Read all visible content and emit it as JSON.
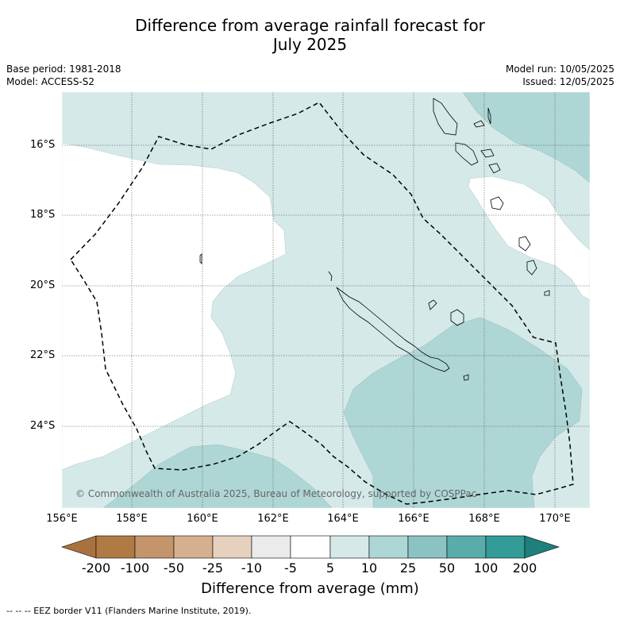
{
  "title_line1": "Difference from average rainfall forecast for",
  "title_line2": "July 2025",
  "base_period": "Base period: 1981-2018",
  "model": "Model: ACCESS-S2",
  "model_run": "Model run: 10/05/2025",
  "issued": "Issued: 12/05/2025",
  "copyright": "© Commonwealth of Australia 2025, Bureau of Meteorology, supported by COSPPac",
  "latitude_labels": [
    "16°S",
    "18°S",
    "20°S",
    "22°S",
    "24°S"
  ],
  "longitude_labels": [
    "156°E",
    "158°E",
    "160°E",
    "162°E",
    "164°E",
    "166°E",
    "168°E",
    "170°E"
  ],
  "colorbar": {
    "labels": [
      "-200",
      "-100",
      "-50",
      "-25",
      "-10",
      "-5",
      "5",
      "10",
      "25",
      "50",
      "100",
      "200"
    ],
    "colors": [
      "#a8723f",
      "#b07a44",
      "#c4956a",
      "#d4b08e",
      "#e6d1bf",
      "#ebebeb",
      "#ffffff",
      "#d4e9e8",
      "#aed6d5",
      "#8bc3c2",
      "#5aacab",
      "#339b98",
      "#1f7f7c"
    ],
    "title": "Difference from average (mm)"
  },
  "footnote": "-- -- -- EEZ border V11 (Flanders Marine Institute, 2019).",
  "legend_colors": {
    "light_teal": "#d4e9e8",
    "medium_teal": "#aed6d5",
    "white": "#ffffff",
    "eez_line": "#000000"
  }
}
